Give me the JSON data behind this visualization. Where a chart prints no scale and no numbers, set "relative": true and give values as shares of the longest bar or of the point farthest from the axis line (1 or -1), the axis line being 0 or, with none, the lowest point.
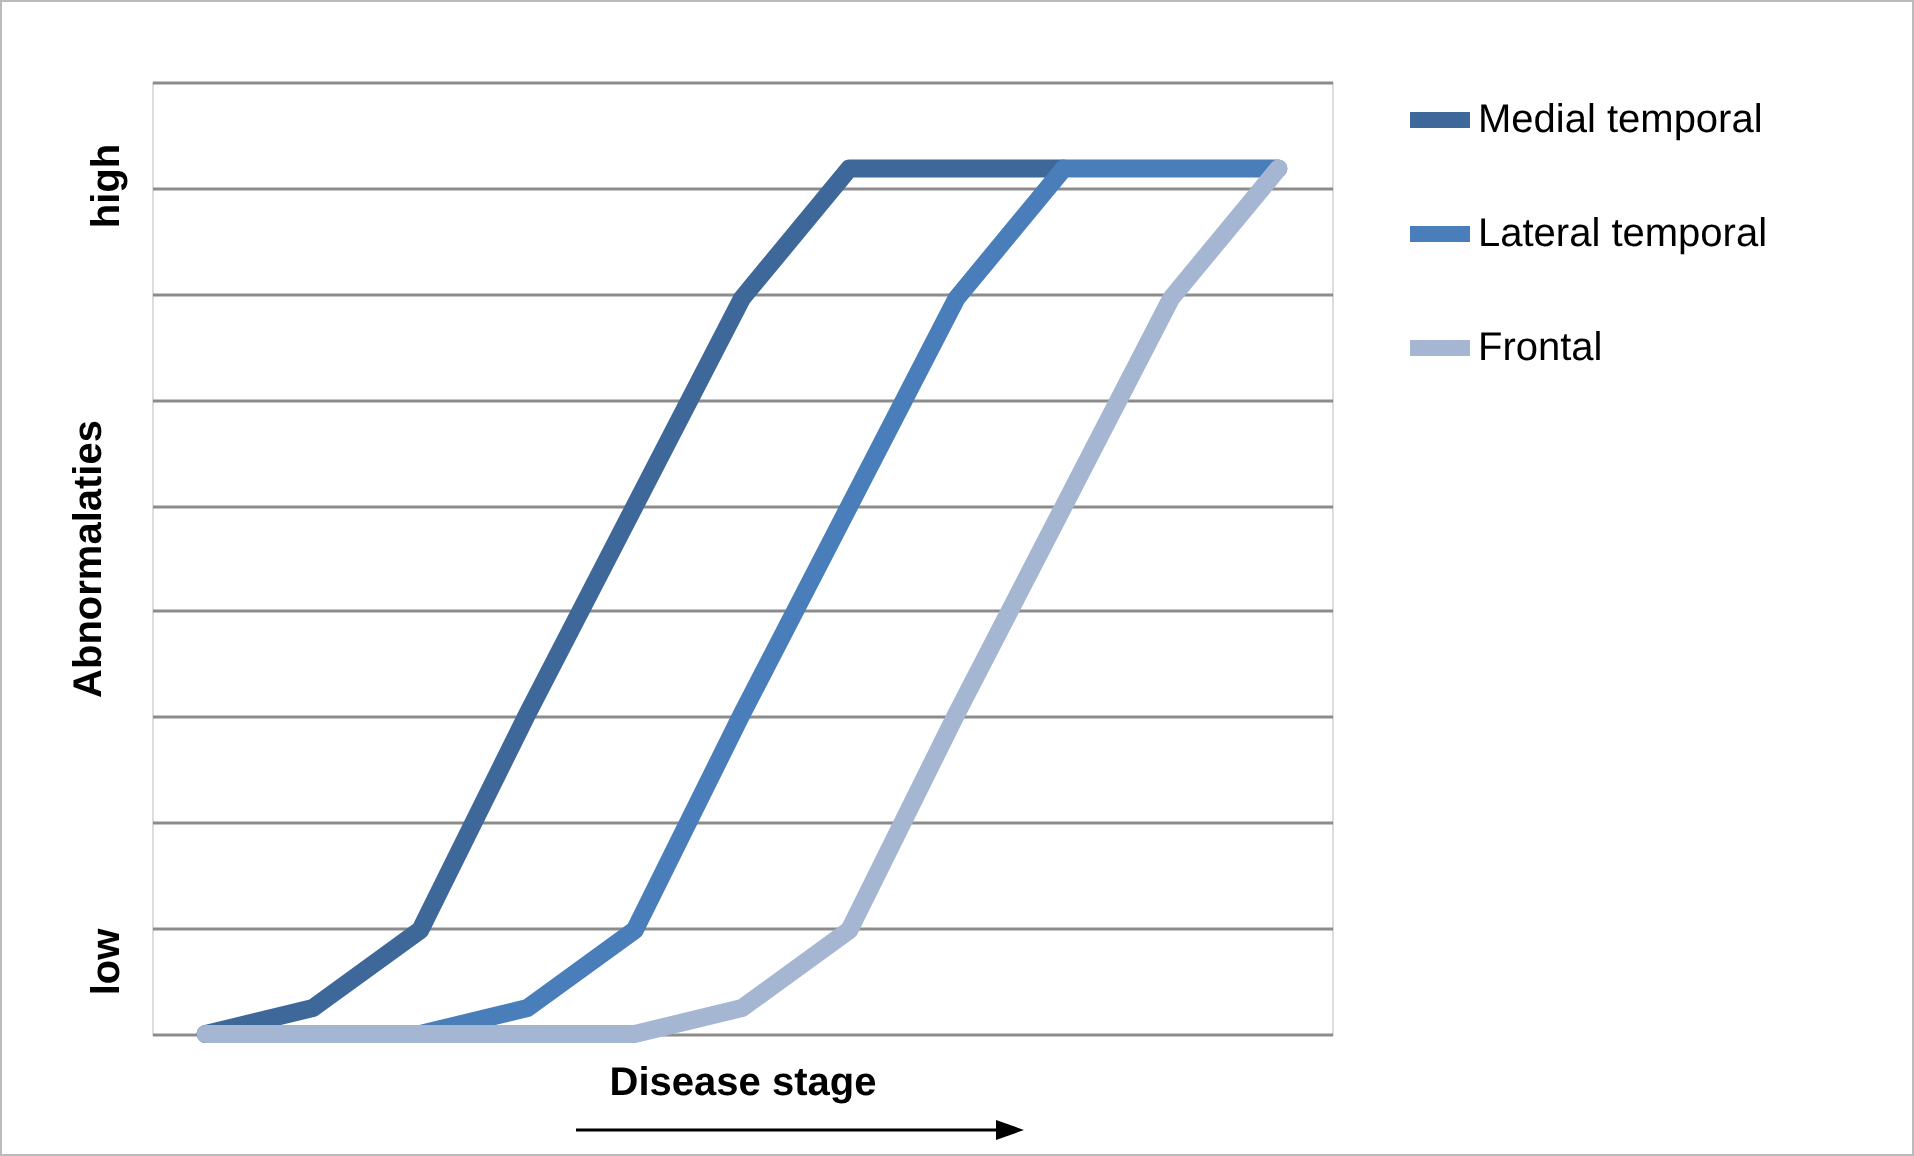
{
  "chart_data": {
    "type": "line",
    "relative": true,
    "xlabel": "Disease stage",
    "ylabel": "Abnormalaties",
    "categories": [
      null,
      null,
      null,
      null,
      null,
      null,
      null,
      null,
      null,
      null,
      null
    ],
    "series": [
      {
        "name": "Medial temporal",
        "color": "#3d6899",
        "values": [
          0,
          0.03,
          0.12,
          0.37,
          0.61,
          0.85,
          1,
          1,
          1,
          null,
          null
        ]
      },
      {
        "name": "Lateral temporal",
        "color": "#4a7ebb",
        "values": [
          0,
          0,
          0,
          0.03,
          0.12,
          0.37,
          0.61,
          0.85,
          1,
          1,
          1
        ]
      },
      {
        "name": "Frontal",
        "color": "#a5b6d3",
        "values": [
          0,
          0,
          0,
          0,
          0,
          0.03,
          0.12,
          0.37,
          0.61,
          0.85,
          1
        ]
      }
    ],
    "annotations": [
      "low",
      "high"
    ],
    "grid": "y",
    "legend": "right",
    "marker": "none",
    "line_style": "solid"
  }
}
